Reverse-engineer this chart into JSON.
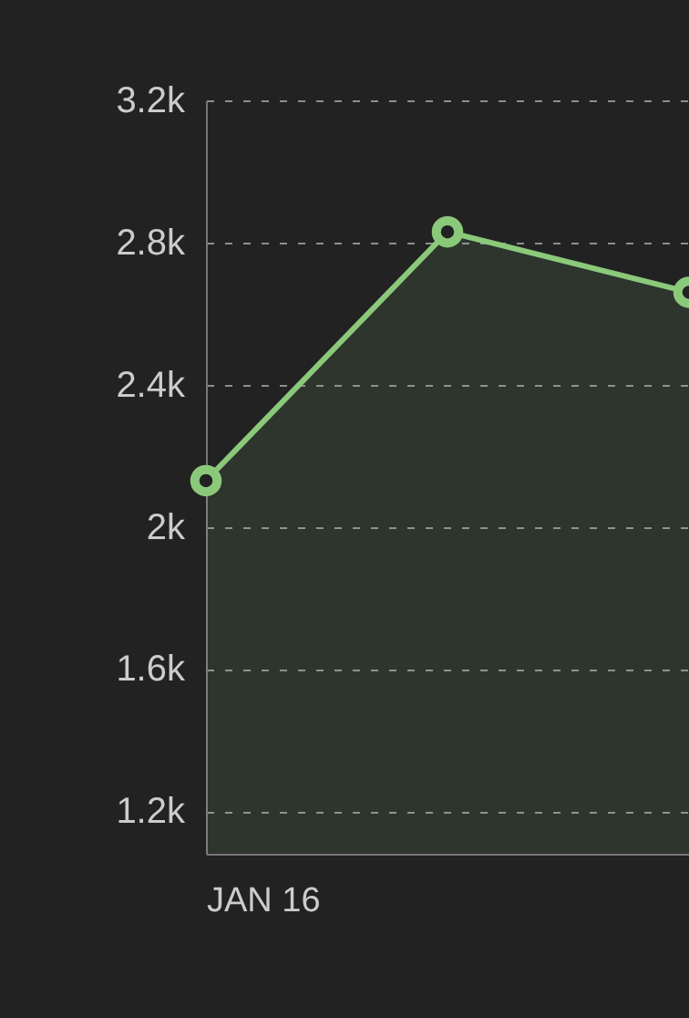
{
  "chart_data": {
    "type": "area",
    "categories": [
      "JAN 16",
      null,
      null
    ],
    "series": [
      {
        "color": "#8bc97a",
        "values": [
          2130,
          2830,
          2660
        ]
      }
    ],
    "ylim": [
      1080,
      3200
    ],
    "yticks": [
      {
        "value": 1200,
        "label": "1.2k"
      },
      {
        "value": 1600,
        "label": "1.6k"
      },
      {
        "value": 2000,
        "label": "2k"
      },
      {
        "value": 2400,
        "label": "2.4k"
      },
      {
        "value": 2800,
        "label": "2.8k"
      },
      {
        "value": 3200,
        "label": "3.2k"
      }
    ],
    "grid": "y",
    "marker": "circle",
    "legend": false
  }
}
